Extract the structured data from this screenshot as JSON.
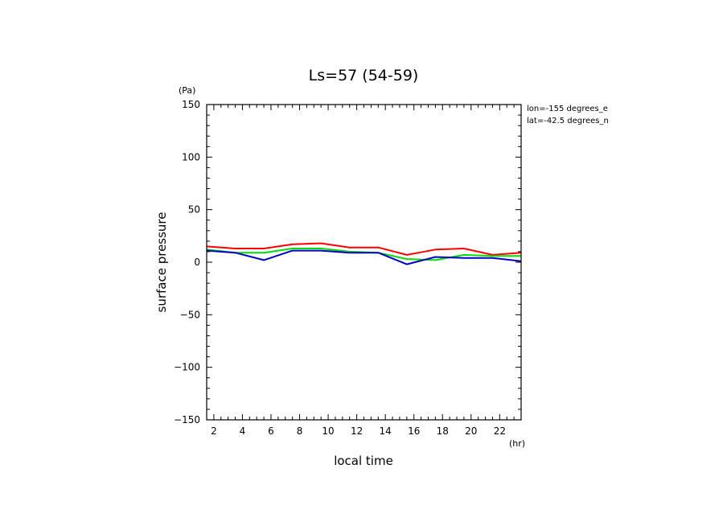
{
  "chart_data": {
    "type": "line",
    "title": "Ls=57 (54-59)",
    "xlabel": "local time",
    "ylabel": "surface pressure",
    "x_unit": "(hr)",
    "y_unit": "(Pa)",
    "xlim": [
      1.5,
      23.5
    ],
    "ylim": [
      -150,
      150
    ],
    "x_ticks": [
      2,
      4,
      6,
      8,
      10,
      12,
      14,
      16,
      18,
      20,
      22
    ],
    "y_ticks": [
      150,
      100,
      50,
      0,
      -50,
      -100,
      -150
    ],
    "grid": false,
    "annotations": [
      "lon=-155 degrees_e",
      "lat=-42.5 degrees_n"
    ],
    "series": [
      {
        "color": "#ff0000",
        "x": [
          1.5,
          3.5,
          5.5,
          7.5,
          9.5,
          11.5,
          13.5,
          15.5,
          17.5,
          19.5,
          21.5,
          23.5
        ],
        "values": [
          15,
          13,
          13,
          17,
          18,
          14,
          14,
          7,
          12,
          13,
          7,
          9
        ]
      },
      {
        "color": "#00dd00",
        "x": [
          1.5,
          3.5,
          5.5,
          7.5,
          9.5,
          11.5,
          13.5,
          15.5,
          17.5,
          19.5,
          21.5,
          23.5
        ],
        "values": [
          12,
          9,
          9,
          13,
          13,
          10,
          9,
          3,
          2,
          7,
          6,
          6
        ]
      },
      {
        "color": "#0000cc",
        "x": [
          1.5,
          3.5,
          5.5,
          7.5,
          9.5,
          11.5,
          13.5,
          15.5,
          17.5,
          19.5,
          21.5,
          23.5
        ],
        "values": [
          11,
          9,
          2,
          11,
          11,
          9,
          9,
          -2,
          5,
          4,
          4,
          1
        ]
      }
    ]
  }
}
